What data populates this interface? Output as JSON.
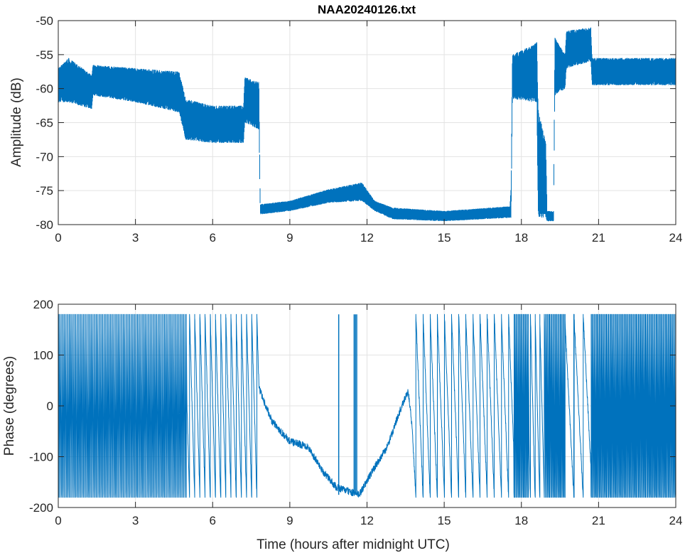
{
  "chart_data": [
    {
      "type": "area",
      "title": "NAA20240126.txt",
      "xlabel": "",
      "ylabel": "Amplitude (dB)",
      "xlim": [
        0,
        24
      ],
      "ylim": [
        -80,
        -50
      ],
      "xticks": [
        "0",
        "3",
        "6",
        "9",
        "12",
        "15",
        "18",
        "21",
        "24"
      ],
      "yticks": [
        "-50",
        "-55",
        "-60",
        "-65",
        "-70",
        "-75",
        "-80"
      ],
      "grid": true,
      "color": "#0072BD",
      "envelope_columns": [
        "time_h",
        "min_dB",
        "max_dB"
      ],
      "envelope": [
        [
          0,
          -62,
          -57
        ],
        [
          0.4,
          -62,
          -55.5
        ],
        [
          1.3,
          -63,
          -58
        ],
        [
          1.35,
          -61,
          -56.5
        ],
        [
          3,
          -62,
          -57
        ],
        [
          4.7,
          -63.5,
          -57.5
        ],
        [
          4.95,
          -67.5,
          -61.5
        ],
        [
          6,
          -68,
          -62.5
        ],
        [
          7.2,
          -68,
          -62.5
        ],
        [
          7.25,
          -65,
          -58.3
        ],
        [
          7.8,
          -66,
          -59
        ],
        [
          7.85,
          -78.5,
          -77
        ],
        [
          9,
          -78,
          -76.5
        ],
        [
          10.5,
          -76.8,
          -74.8
        ],
        [
          11.8,
          -76.5,
          -73.8
        ],
        [
          12.3,
          -78,
          -76.5
        ],
        [
          13,
          -79.2,
          -77.5
        ],
        [
          15,
          -79.5,
          -78
        ],
        [
          17.55,
          -79,
          -77.3
        ],
        [
          17.6,
          -79,
          -74.5
        ],
        [
          17.65,
          -61.5,
          -55
        ],
        [
          18.5,
          -62,
          -53.5
        ],
        [
          18.6,
          -62,
          -53
        ],
        [
          18.65,
          -79,
          -63
        ],
        [
          18.95,
          -79,
          -68
        ],
        [
          19.0,
          -79.5,
          -78
        ],
        [
          19.25,
          -79.5,
          -78
        ],
        [
          19.3,
          -61,
          -52.5
        ],
        [
          19.7,
          -60,
          -55
        ],
        [
          19.75,
          -57,
          -51.5
        ],
        [
          20.7,
          -56,
          -51
        ],
        [
          20.75,
          -59.5,
          -55.5
        ],
        [
          24,
          -59.5,
          -55.5
        ]
      ]
    },
    {
      "type": "line",
      "title": "",
      "xlabel": "Time (hours after midnight UTC)",
      "ylabel": "Phase (degrees)",
      "xlim": [
        0,
        24
      ],
      "ylim": [
        -200,
        200
      ],
      "xticks": [
        "0",
        "3",
        "6",
        "9",
        "12",
        "15",
        "18",
        "21",
        "24"
      ],
      "yticks": [
        "200",
        "100",
        "0",
        "-100",
        "-200"
      ],
      "grid": true,
      "color": "#0072BD",
      "wrap_deg": [
        -180,
        180
      ],
      "unwrapped_columns": [
        "time_h",
        "unwrapped_phase_deg"
      ],
      "unwrapped": [
        [
          0,
          0
        ],
        [
          5,
          -36000
        ],
        [
          7.8,
          -41005
        ],
        [
          8.3,
          -41070
        ],
        [
          9,
          -41110
        ],
        [
          9.7,
          -41120
        ],
        [
          10.3,
          -41170
        ],
        [
          10.8,
          -41200
        ],
        [
          11.7,
          -41215
        ],
        [
          12.3,
          -41160
        ],
        [
          12.8,
          -41120
        ],
        [
          13.2,
          -41060
        ],
        [
          13.6,
          -41010
        ],
        [
          13.75,
          -41080
        ],
        [
          13.9,
          -41220
        ],
        [
          17.7,
          -46160
        ],
        [
          18.3,
          -51560
        ],
        [
          18.9,
          -52760
        ],
        [
          19.7,
          -59960
        ],
        [
          20.7,
          -60960
        ],
        [
          24,
          -90660
        ]
      ],
      "wrap_spikes_h": [
        10.9,
        11.5,
        11.55,
        11.6
      ]
    }
  ]
}
